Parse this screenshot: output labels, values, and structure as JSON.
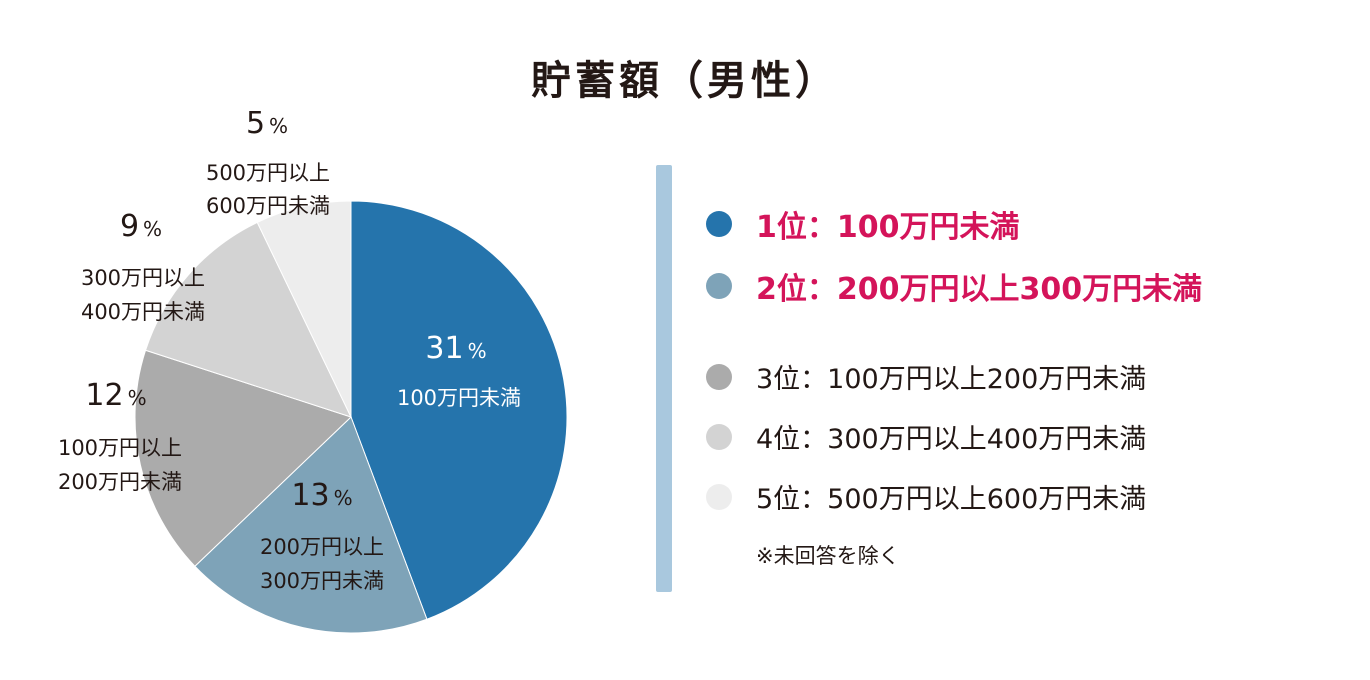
{
  "chart_data": {
    "type": "pie",
    "title": "貯蓄額（男性）",
    "slices": [
      {
        "label_lines": [
          "100万円未満"
        ],
        "percent_text": "31",
        "value": 31,
        "color": "#2574ac",
        "label_color": "#ffffff"
      },
      {
        "label_lines": [
          "200万円以上",
          "300万円未満"
        ],
        "percent_text": "13",
        "value": 13,
        "color": "#7ea3b8",
        "label_color": "#231815"
      },
      {
        "label_lines": [
          "100万円以上",
          "200万円未満"
        ],
        "percent_text": "12",
        "value": 12,
        "color": "#ababab",
        "label_color": "#231815"
      },
      {
        "label_lines": [
          "300万円以上",
          "400万円未満"
        ],
        "percent_text": "9",
        "value": 9,
        "color": "#d3d3d3",
        "label_color": "#231815"
      },
      {
        "label_lines": [
          "500万円以上",
          "600万円未満"
        ],
        "percent_text": "5",
        "value": 5,
        "color": "#ededed",
        "label_color": "#231815"
      }
    ],
    "percent_sign": "%",
    "legend": [
      {
        "text": "1位：100万円未満",
        "color": "#2574ac",
        "highlight": true
      },
      {
        "text": "2位：200万円以上300万円未満",
        "color": "#7ea3b8",
        "highlight": true
      },
      {
        "text": "3位：100万円以上200万円未満",
        "color": "#ababab",
        "highlight": false
      },
      {
        "text": "4位：300万円以上400万円未満",
        "color": "#d3d3d3",
        "highlight": false
      },
      {
        "text": "5位：500万円以上600万円未満",
        "color": "#ededed",
        "highlight": false
      }
    ],
    "footnote": "※未回答を除く",
    "highlight_color": "#d4145a"
  }
}
